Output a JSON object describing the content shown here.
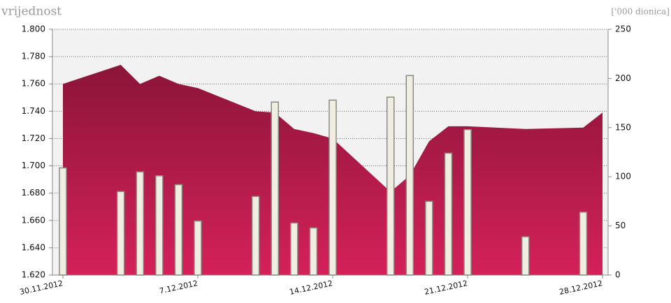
{
  "chart_data": {
    "type": "area_bar",
    "y_label": "vrijednost",
    "y2_label": "['000 dionica]",
    "x": [
      "30.11.2012",
      "3.12.2012",
      "4.12.2012",
      "5.12.2012",
      "6.12.2012",
      "7.12.2012",
      "10.12.2012",
      "11.12.2012",
      "12.12.2012",
      "13.12.2012",
      "14.12.2012",
      "17.12.2012",
      "18.12.2012",
      "19.12.2012",
      "20.12.2012",
      "21.12.2012",
      "24.12.2012",
      "27.12.2012",
      "28.12.2012"
    ],
    "xlim": [
      "30.11.2012",
      "28.12.2012"
    ],
    "xticks": [
      "30.11.2012",
      "7.12.2012",
      "14.12.2012",
      "21.12.2012",
      "28.12.2012"
    ],
    "series": [
      {
        "name": "vrijednost",
        "type": "area",
        "color_top": "#8b1538",
        "color_bottom": "#d4215a",
        "values": [
          1.76,
          1.774,
          1.76,
          1.766,
          1.76,
          1.757,
          1.74,
          1.739,
          1.727,
          1.724,
          1.72,
          1.681,
          1.693,
          1.718,
          1.729,
          1.729,
          1.727,
          1.728,
          1.739
        ]
      },
      {
        "name": "['000 dionica]",
        "type": "bar",
        "axis": "y2",
        "color": "#f0eee2",
        "edge": "#8a8a80",
        "values": [
          109,
          85,
          105,
          101,
          92,
          55,
          80,
          176,
          53,
          48,
          178,
          181,
          203,
          75,
          124,
          148,
          39,
          64,
          null
        ]
      }
    ],
    "ylim": [
      1.62,
      1.8
    ],
    "yticks": [
      {
        "value": 1.62,
        "label": "1.620"
      },
      {
        "value": 1.64,
        "label": "1.640"
      },
      {
        "value": 1.66,
        "label": "1.660"
      },
      {
        "value": 1.68,
        "label": "1.680"
      },
      {
        "value": 1.7,
        "label": "1.700"
      },
      {
        "value": 1.72,
        "label": "1.720"
      },
      {
        "value": 1.74,
        "label": "1.740"
      },
      {
        "value": 1.76,
        "label": "1.760"
      },
      {
        "value": 1.78,
        "label": "1.780"
      },
      {
        "value": 1.8,
        "label": "1.800"
      }
    ],
    "y2lim": [
      0,
      250
    ],
    "y2ticks": [
      0,
      50,
      100,
      150,
      200,
      250
    ],
    "grid": true
  }
}
